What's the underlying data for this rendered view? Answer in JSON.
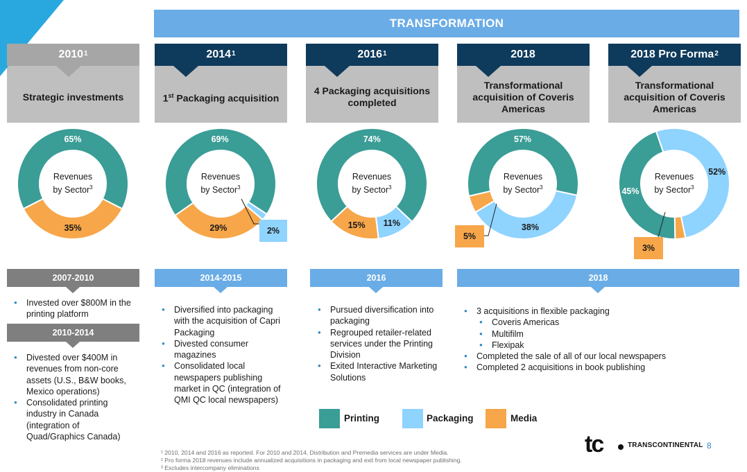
{
  "banner": "TRANSFORMATION",
  "periods": [
    {
      "year": "2010",
      "sup": "1",
      "title": "Strategic investments"
    },
    {
      "year": "2014",
      "sup": "1",
      "title_pre": "1",
      "title_sup": "st",
      "title": " Packaging acquisition"
    },
    {
      "year": "2016",
      "sup": "1",
      "title": "4 Packaging acquisitions completed"
    },
    {
      "year": "2018",
      "sup": "",
      "title": "Transformational acquisition of Coveris Americas"
    },
    {
      "year": "2018 Pro Forma",
      "sup": "2",
      "title": "Transformational acquisition of Coveris Americas"
    }
  ],
  "donut_center": {
    "line1": "Revenues",
    "line2": "by Sector",
    "sup": "3"
  },
  "colors": {
    "printing": "#3a9d96",
    "packaging": "#8fd3ff",
    "media": "#f7a64a",
    "navy": "#0e3a5c",
    "banner": "#6aace6",
    "grey": "#a6a6a6",
    "bullet": "#2a86c8"
  },
  "chart_data": [
    {
      "type": "pie",
      "period": "2010",
      "labels": [
        "Printing",
        "Packaging",
        "Media"
      ],
      "values": [
        65,
        0,
        35
      ],
      "value_labels": [
        "65%",
        "",
        "35%"
      ]
    },
    {
      "type": "pie",
      "period": "2014",
      "labels": [
        "Printing",
        "Packaging",
        "Media"
      ],
      "values": [
        69,
        2,
        29
      ],
      "value_labels": [
        "69%",
        "2%",
        "29%"
      ]
    },
    {
      "type": "pie",
      "period": "2016",
      "labels": [
        "Printing",
        "Packaging",
        "Media"
      ],
      "values": [
        74,
        11,
        15
      ],
      "value_labels": [
        "74%",
        "11%",
        "15%"
      ]
    },
    {
      "type": "pie",
      "period": "2018",
      "labels": [
        "Printing",
        "Packaging",
        "Media"
      ],
      "values": [
        57,
        38,
        5
      ],
      "value_labels": [
        "57%",
        "38%",
        "5%"
      ]
    },
    {
      "type": "pie",
      "period": "2018 Pro Forma",
      "labels": [
        "Printing",
        "Packaging",
        "Media"
      ],
      "values": [
        45,
        52,
        3
      ],
      "value_labels": [
        "45%",
        "52%",
        "3%"
      ]
    }
  ],
  "panels": {
    "p2007": {
      "head": "2007-2010",
      "items": [
        "Invested over $800M in the printing platform"
      ]
    },
    "p2010": {
      "head": "2010-2014",
      "items": [
        "Divested over $400M in revenues from non-core assets (U.S., B&W books, Mexico operations)",
        "Consolidated printing industry in Canada (integration of Quad/Graphics Canada)"
      ]
    },
    "p2014": {
      "head": "2014-2015",
      "items": [
        "Diversified into packaging with the acquisition of Capri Packaging",
        "Divested consumer magazines",
        "Consolidated local newspapers publishing market in QC (integration of QMI QC local newspapers)"
      ]
    },
    "p2016": {
      "head": "2016",
      "items": [
        "Pursued diversification into packaging",
        "Regrouped retailer-related services under the Printing Division",
        "Exited Interactive Marketing Solutions"
      ]
    },
    "p2018": {
      "head": "2018",
      "items": [
        "3 acquisitions in flexible packaging",
        "Coveris Americas",
        "Multifilm",
        "Flexipak",
        "Completed the sale of all of our local newspapers",
        "Completed 2 acquisitions in book publishing"
      ]
    }
  },
  "legend": [
    "Printing",
    "Packaging",
    "Media"
  ],
  "footnotes": [
    "¹ 2010, 2014 and 2016 as reported. For 2010 and 2014, Distribution and Premedia services are under Media.",
    "² Pro forma 2018 revenues include annualized acquisitions in packaging and exit from local newspaper publishing.",
    "³ Excludes intercompany eliminations"
  ],
  "logo": {
    "mark": "tc",
    "name": "TRANSCONTINENTAL"
  },
  "page_number": "8"
}
